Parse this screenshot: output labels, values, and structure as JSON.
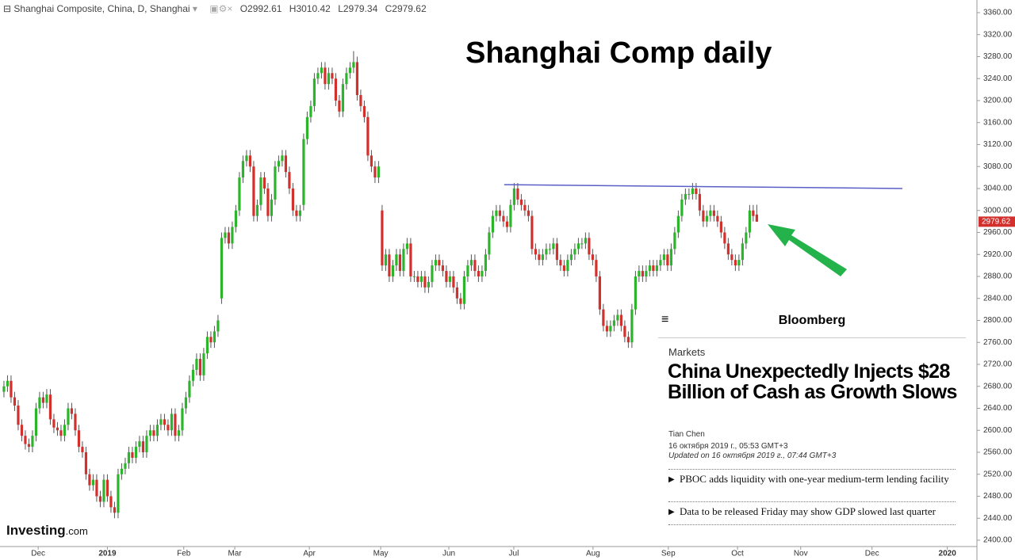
{
  "chart_data": {
    "type": "candlestick",
    "series_name": "Shanghai Composite, China, D, Shanghai",
    "ohlc_labels": [
      "O",
      "H",
      "L",
      "C"
    ],
    "title": "Shanghai Comp daily",
    "logo": "Investing",
    "logo_suffix": ".com",
    "up_color": "#2bb52b",
    "down_color": "#d2302c",
    "xlim": [
      -1.1,
      272.7
    ],
    "ylim": [
      2388.5,
      3383
    ],
    "grid": false,
    "xticks": [
      {
        "value": 9.6,
        "label": "Dec"
      },
      {
        "value": 29,
        "label": "2019"
      },
      {
        "value": 50.4,
        "label": "Feb"
      },
      {
        "value": 64.7,
        "label": "Mar"
      },
      {
        "value": 85.6,
        "label": "Apr"
      },
      {
        "value": 105.6,
        "label": "May"
      },
      {
        "value": 124.7,
        "label": "Jun"
      },
      {
        "value": 142.9,
        "label": "Jul"
      },
      {
        "value": 165.1,
        "label": "Aug"
      },
      {
        "value": 186.2,
        "label": "Sep"
      },
      {
        "value": 205.6,
        "label": "Oct"
      },
      {
        "value": 223.3,
        "label": "Nov"
      },
      {
        "value": 243.3,
        "label": "Dec"
      },
      {
        "value": 264.4,
        "label": "2020"
      }
    ],
    "yticks": [
      {
        "value": 2400,
        "label": "2400.00"
      },
      {
        "value": 2440,
        "label": "2440.00"
      },
      {
        "value": 2480,
        "label": "2480.00"
      },
      {
        "value": 2520,
        "label": "2520.00"
      },
      {
        "value": 2560,
        "label": "2560.00"
      },
      {
        "value": 2600,
        "label": "2600.00"
      },
      {
        "value": 2640,
        "label": "2640.00"
      },
      {
        "value": 2680,
        "label": "2680.00"
      },
      {
        "value": 2720,
        "label": "2720.00"
      },
      {
        "value": 2760,
        "label": "2760.00"
      },
      {
        "value": 2800,
        "label": "2800.00"
      },
      {
        "value": 2840,
        "label": "2840.00"
      },
      {
        "value": 2880,
        "label": "2880.00"
      },
      {
        "value": 2920,
        "label": "2920.00"
      },
      {
        "value": 2960,
        "label": "2960.00"
      },
      {
        "value": 3000,
        "label": "3000.00"
      },
      {
        "value": 3040,
        "label": "3040.00"
      },
      {
        "value": 3080,
        "label": "3080.00"
      },
      {
        "value": 3120,
        "label": "3120.00"
      },
      {
        "value": 3160,
        "label": "3160.00"
      },
      {
        "value": 3200,
        "label": "3200.00"
      },
      {
        "value": 3240,
        "label": "3240.00"
      },
      {
        "value": 3280,
        "label": "3280.00"
      },
      {
        "value": 3320,
        "label": "3320.00"
      },
      {
        "value": 3360,
        "label": "3360.00"
      }
    ],
    "open": [
      2670,
      2680,
      2690,
      2660,
      2645,
      2610,
      2590,
      2575,
      2570,
      2590,
      2640,
      2660,
      2650,
      2665,
      2620,
      2605,
      2600,
      2590,
      2610,
      2640,
      2630,
      2600,
      2570,
      2560,
      2520,
      2500,
      2510,
      2480,
      2470,
      2510,
      2480,
      2460,
      2450,
      2520,
      2530,
      2540,
      2560,
      2550,
      2570,
      2580,
      2560,
      2590,
      2600,
      2590,
      2610,
      2620,
      2610,
      2600,
      2630,
      2590,
      2600,
      2640,
      2660,
      2690,
      2710,
      2730,
      2700,
      2740,
      2770,
      2760,
      2780,
      2840,
      2950,
      2960,
      2940,
      2970,
      3000,
      3060,
      3090,
      3100,
      3080,
      2990,
      3010,
      3060,
      3040,
      2990,
      3020,
      3080,
      3090,
      3100,
      3070,
      3040,
      3000,
      2990,
      3010,
      3130,
      3170,
      3190,
      3240,
      3250,
      3260,
      3230,
      3250,
      3240,
      3200,
      3180,
      3230,
      3250,
      3260,
      3270,
      3210,
      3190,
      3170,
      3100,
      3080,
      3060,
      3000,
      2900,
      2920,
      2880,
      2900,
      2920,
      2890,
      2930,
      2940,
      2880,
      2880,
      2870,
      2880,
      2860,
      2870,
      2900,
      2910,
      2900,
      2890,
      2870,
      2880,
      2860,
      2840,
      2830,
      2880,
      2900,
      2910,
      2890,
      2880,
      2890,
      2920,
      2960,
      2990,
      3000,
      2990,
      2980,
      2970,
      3010,
      3040,
      3020,
      3010,
      3000,
      2990,
      2930,
      2920,
      2910,
      2920,
      2930,
      2930,
      2940,
      2910,
      2900,
      2890,
      2910,
      2920,
      2930,
      2940,
      2940,
      2950,
      2920,
      2910,
      2880,
      2820,
      2790,
      2780,
      2790,
      2800,
      2810,
      2790,
      2770,
      2760,
      2820,
      2880,
      2890,
      2880,
      2890,
      2900,
      2890,
      2900,
      2910,
      2920,
      2900,
      2930,
      2960,
      2990,
      3020,
      3030,
      3030,
      3040,
      3030,
      3000,
      2980,
      2990,
      3000,
      2990,
      2980,
      2960,
      2940,
      2920,
      2910,
      2900,
      2910,
      2940,
      2960,
      3000,
      2992.61
    ],
    "high": [
      2690,
      2700,
      2700,
      2670,
      2655,
      2620,
      2600,
      2585,
      2600,
      2650,
      2670,
      2670,
      2675,
      2675,
      2630,
      2615,
      2610,
      2620,
      2650,
      2650,
      2640,
      2610,
      2580,
      2570,
      2530,
      2520,
      2520,
      2490,
      2520,
      2520,
      2490,
      2470,
      2530,
      2540,
      2550,
      2570,
      2570,
      2580,
      2590,
      2590,
      2600,
      2610,
      2610,
      2620,
      2630,
      2630,
      2620,
      2640,
      2640,
      2610,
      2650,
      2670,
      2700,
      2720,
      2740,
      2740,
      2750,
      2780,
      2780,
      2790,
      2810,
      2960,
      2970,
      2970,
      2980,
      3010,
      3070,
      3100,
      3110,
      3110,
      3090,
      3020,
      3070,
      3070,
      3050,
      3030,
      3090,
      3100,
      3110,
      3110,
      3080,
      3050,
      3010,
      3010,
      3140,
      3180,
      3200,
      3250,
      3260,
      3270,
      3270,
      3260,
      3260,
      3250,
      3210,
      3240,
      3260,
      3270,
      3290,
      3280,
      3220,
      3200,
      3180,
      3110,
      3090,
      3090,
      3010,
      2930,
      2930,
      2910,
      2930,
      2930,
      2940,
      2950,
      2950,
      2890,
      2890,
      2890,
      2890,
      2880,
      2910,
      2920,
      2920,
      2910,
      2900,
      2890,
      2890,
      2870,
      2850,
      2890,
      2910,
      2920,
      2920,
      2900,
      2900,
      2930,
      2970,
      3000,
      3010,
      3010,
      3000,
      2990,
      3020,
      3050,
      3050,
      3030,
      3020,
      3010,
      3000,
      2940,
      2930,
      2930,
      2940,
      2940,
      2950,
      2950,
      2920,
      2910,
      2920,
      2930,
      2940,
      2950,
      2950,
      2960,
      2960,
      2930,
      2920,
      2890,
      2830,
      2800,
      2800,
      2810,
      2820,
      2820,
      2800,
      2780,
      2830,
      2890,
      2900,
      2900,
      2900,
      2910,
      2910,
      2910,
      2920,
      2930,
      2930,
      2940,
      2970,
      3000,
      3030,
      3040,
      3040,
      3050,
      3050,
      3040,
      3010,
      3000,
      3010,
      3010,
      3000,
      2990,
      2970,
      2950,
      2930,
      2920,
      2920,
      2950,
      2970,
      3010,
      3010,
      3010.42
    ],
    "low": [
      2660,
      2670,
      2650,
      2635,
      2600,
      2580,
      2565,
      2560,
      2560,
      2580,
      2630,
      2640,
      2640,
      2610,
      2595,
      2590,
      2580,
      2580,
      2600,
      2620,
      2590,
      2560,
      2550,
      2510,
      2490,
      2490,
      2470,
      2460,
      2460,
      2470,
      2450,
      2440,
      2440,
      2510,
      2520,
      2530,
      2540,
      2540,
      2560,
      2550,
      2550,
      2580,
      2580,
      2580,
      2600,
      2600,
      2590,
      2590,
      2580,
      2580,
      2590,
      2630,
      2650,
      2680,
      2700,
      2690,
      2690,
      2730,
      2750,
      2750,
      2770,
      2830,
      2940,
      2930,
      2930,
      2960,
      2990,
      3050,
      3080,
      3070,
      2980,
      2980,
      3000,
      3030,
      2980,
      2980,
      3010,
      3070,
      3080,
      3060,
      3030,
      2990,
      2980,
      2980,
      3000,
      3120,
      3160,
      3180,
      3230,
      3240,
      3220,
      3220,
      3230,
      3190,
      3170,
      3170,
      3220,
      3240,
      3250,
      3200,
      3180,
      3160,
      3090,
      3070,
      3050,
      3050,
      2890,
      2890,
      2870,
      2870,
      2890,
      2880,
      2880,
      2920,
      2870,
      2870,
      2860,
      2860,
      2850,
      2850,
      2860,
      2890,
      2890,
      2880,
      2860,
      2860,
      2850,
      2830,
      2820,
      2820,
      2870,
      2890,
      2880,
      2870,
      2870,
      2880,
      2910,
      2950,
      2980,
      2980,
      2970,
      2960,
      2960,
      3000,
      3010,
      3000,
      2990,
      2980,
      2920,
      2910,
      2900,
      2900,
      2910,
      2920,
      2920,
      2900,
      2890,
      2880,
      2880,
      2900,
      2910,
      2920,
      2930,
      2930,
      2910,
      2900,
      2870,
      2810,
      2780,
      2770,
      2770,
      2780,
      2790,
      2780,
      2760,
      2750,
      2750,
      2810,
      2870,
      2870,
      2870,
      2880,
      2880,
      2880,
      2890,
      2900,
      2890,
      2890,
      2920,
      2950,
      2980,
      3010,
      3020,
      3020,
      3020,
      2990,
      2970,
      2970,
      2980,
      2980,
      2970,
      2950,
      2930,
      2910,
      2900,
      2890,
      2890,
      2900,
      2930,
      2950,
      2980,
      2979.34
    ],
    "close": [
      2680,
      2690,
      2660,
      2645,
      2610,
      2590,
      2575,
      2570,
      2590,
      2640,
      2660,
      2650,
      2665,
      2620,
      2605,
      2600,
      2590,
      2610,
      2640,
      2630,
      2600,
      2570,
      2560,
      2520,
      2500,
      2510,
      2480,
      2470,
      2510,
      2480,
      2460,
      2450,
      2520,
      2530,
      2540,
      2560,
      2550,
      2570,
      2580,
      2560,
      2590,
      2600,
      2590,
      2610,
      2620,
      2610,
      2600,
      2630,
      2590,
      2600,
      2640,
      2660,
      2690,
      2710,
      2730,
      2700,
      2740,
      2770,
      2760,
      2780,
      2800,
      2950,
      2960,
      2940,
      2970,
      3000,
      3060,
      3090,
      3100,
      3080,
      2990,
      3010,
      3060,
      3040,
      2990,
      3020,
      3080,
      3090,
      3100,
      3070,
      3040,
      3000,
      2990,
      3000,
      3130,
      3170,
      3190,
      3240,
      3250,
      3260,
      3230,
      3250,
      3240,
      3200,
      3180,
      3230,
      3250,
      3260,
      3270,
      3210,
      3190,
      3170,
      3100,
      3080,
      3060,
      3080,
      2900,
      2920,
      2880,
      2900,
      2920,
      2890,
      2930,
      2940,
      2880,
      2880,
      2870,
      2880,
      2860,
      2870,
      2900,
      2910,
      2900,
      2890,
      2870,
      2880,
      2860,
      2840,
      2830,
      2880,
      2900,
      2910,
      2890,
      2880,
      2890,
      2920,
      2960,
      2990,
      3000,
      2990,
      2980,
      2970,
      3010,
      3040,
      3020,
      3010,
      3000,
      2990,
      2930,
      2920,
      2910,
      2920,
      2930,
      2930,
      2940,
      2910,
      2900,
      2890,
      2910,
      2920,
      2930,
      2940,
      2940,
      2950,
      2920,
      2910,
      2880,
      2820,
      2790,
      2780,
      2790,
      2800,
      2810,
      2790,
      2770,
      2760,
      2820,
      2880,
      2890,
      2880,
      2890,
      2900,
      2890,
      2900,
      2910,
      2920,
      2900,
      2930,
      2960,
      2990,
      3020,
      3030,
      3030,
      3040,
      3030,
      3000,
      2980,
      2990,
      3000,
      2990,
      2980,
      2960,
      2940,
      2920,
      2910,
      2900,
      2910,
      2940,
      2960,
      3000,
      2990,
      2979.62
    ],
    "trendline": {
      "x": [
        140.2,
        251.8
      ],
      "y": [
        3047,
        3040
      ],
      "color": "#5a5fc8"
    }
  },
  "overlay": {
    "brand": "Bloomberg",
    "section": "Markets",
    "headline": "China Unexpectedly Injects $28 Billion of Cash as Growth Slows",
    "author": "Tian Chen",
    "published": "16 октября 2019 г., 05:53 GMT+3",
    "updated": "Updated on 16 октября 2019 г., 07:44 GMT+3",
    "bullets": [
      "PBOC adds liquidity with one-year medium-term lending facility",
      "Data to be released Friday may show GDP slowed last quarter"
    ]
  }
}
